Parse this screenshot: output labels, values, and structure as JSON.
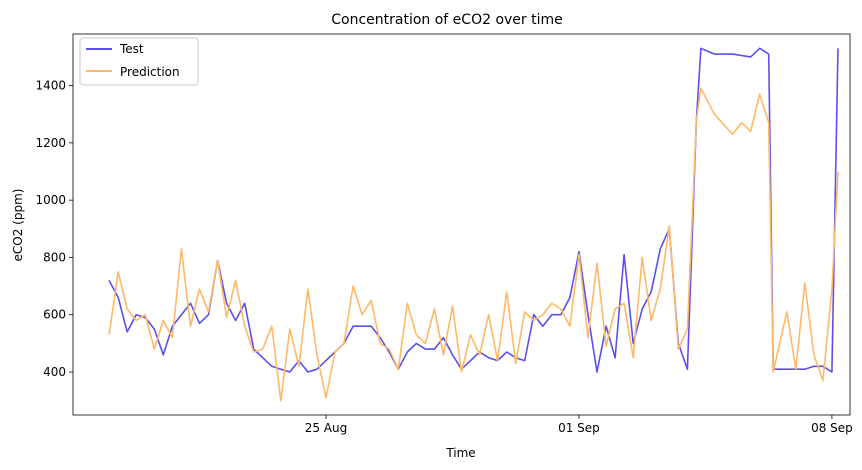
{
  "chart_data": {
    "type": "line",
    "title": "Concentration of eCO2 over time",
    "xlabel": "Time",
    "ylabel": "eCO2 (ppm)",
    "xlim": [
      "2024-08-18T00:00",
      "2024-09-08T12:00"
    ],
    "ylim": [
      250,
      1580
    ],
    "x_ticks": [
      {
        "date": "2024-08-25T00:00",
        "label": "25 Aug"
      },
      {
        "date": "2024-09-01T00:00",
        "label": "01 Sep"
      },
      {
        "date": "2024-09-08T00:00",
        "label": "08 Sep"
      }
    ],
    "y_ticks": [
      400,
      600,
      800,
      1000,
      1200,
      1400
    ],
    "legend": {
      "position": "top-left"
    },
    "series": [
      {
        "name": "Test",
        "color": "#5b4ff0",
        "points": [
          [
            "2024-08-19T00:00",
            720
          ],
          [
            "2024-08-19T06:00",
            660
          ],
          [
            "2024-08-19T12:00",
            540
          ],
          [
            "2024-08-19T18:00",
            600
          ],
          [
            "2024-08-20T00:00",
            590
          ],
          [
            "2024-08-20T06:00",
            550
          ],
          [
            "2024-08-20T12:00",
            460
          ],
          [
            "2024-08-20T18:00",
            560
          ],
          [
            "2024-08-21T00:00",
            600
          ],
          [
            "2024-08-21T06:00",
            640
          ],
          [
            "2024-08-21T12:00",
            570
          ],
          [
            "2024-08-21T18:00",
            600
          ],
          [
            "2024-08-22T00:00",
            790
          ],
          [
            "2024-08-22T06:00",
            640
          ],
          [
            "2024-08-22T12:00",
            580
          ],
          [
            "2024-08-22T18:00",
            640
          ],
          [
            "2024-08-23T00:00",
            480
          ],
          [
            "2024-08-23T06:00",
            450
          ],
          [
            "2024-08-23T12:00",
            420
          ],
          [
            "2024-08-23T18:00",
            410
          ],
          [
            "2024-08-24T00:00",
            400
          ],
          [
            "2024-08-24T06:00",
            440
          ],
          [
            "2024-08-24T12:00",
            400
          ],
          [
            "2024-08-24T18:00",
            410
          ],
          [
            "2024-08-25T00:00",
            440
          ],
          [
            "2024-08-25T06:00",
            470
          ],
          [
            "2024-08-25T12:00",
            500
          ],
          [
            "2024-08-25T18:00",
            560
          ],
          [
            "2024-08-26T00:00",
            560
          ],
          [
            "2024-08-26T06:00",
            560
          ],
          [
            "2024-08-26T12:00",
            520
          ],
          [
            "2024-08-26T18:00",
            470
          ],
          [
            "2024-08-27T00:00",
            410
          ],
          [
            "2024-08-27T06:00",
            470
          ],
          [
            "2024-08-27T12:00",
            500
          ],
          [
            "2024-08-27T18:00",
            480
          ],
          [
            "2024-08-28T00:00",
            480
          ],
          [
            "2024-08-28T06:00",
            520
          ],
          [
            "2024-08-28T12:00",
            460
          ],
          [
            "2024-08-28T18:00",
            410
          ],
          [
            "2024-08-29T00:00",
            440
          ],
          [
            "2024-08-29T06:00",
            470
          ],
          [
            "2024-08-29T12:00",
            450
          ],
          [
            "2024-08-29T18:00",
            440
          ],
          [
            "2024-08-30T00:00",
            470
          ],
          [
            "2024-08-30T06:00",
            450
          ],
          [
            "2024-08-30T12:00",
            440
          ],
          [
            "2024-08-30T18:00",
            600
          ],
          [
            "2024-08-31T00:00",
            560
          ],
          [
            "2024-08-31T06:00",
            600
          ],
          [
            "2024-08-31T12:00",
            600
          ],
          [
            "2024-08-31T18:00",
            660
          ],
          [
            "2024-09-01T00:00",
            820
          ],
          [
            "2024-09-01T06:00",
            600
          ],
          [
            "2024-09-01T12:00",
            400
          ],
          [
            "2024-09-01T18:00",
            560
          ],
          [
            "2024-09-02T00:00",
            450
          ],
          [
            "2024-09-02T06:00",
            810
          ],
          [
            "2024-09-02T12:00",
            500
          ],
          [
            "2024-09-02T18:00",
            620
          ],
          [
            "2024-09-03T00:00",
            680
          ],
          [
            "2024-09-03T06:00",
            830
          ],
          [
            "2024-09-03T12:00",
            900
          ],
          [
            "2024-09-03T18:00",
            500
          ],
          [
            "2024-09-04T00:00",
            410
          ],
          [
            "2024-09-04T06:00",
            1280
          ],
          [
            "2024-09-04T09:00",
            1530
          ],
          [
            "2024-09-04T18:00",
            1510
          ],
          [
            "2024-09-05T06:00",
            1510
          ],
          [
            "2024-09-05T18:00",
            1500
          ],
          [
            "2024-09-06T00:00",
            1530
          ],
          [
            "2024-09-06T06:00",
            1510
          ],
          [
            "2024-09-06T09:00",
            410
          ],
          [
            "2024-09-06T18:00",
            410
          ],
          [
            "2024-09-07T06:00",
            410
          ],
          [
            "2024-09-07T12:00",
            420
          ],
          [
            "2024-09-07T18:00",
            420
          ],
          [
            "2024-09-08T00:00",
            400
          ],
          [
            "2024-09-08T04:00",
            1530
          ]
        ]
      },
      {
        "name": "Prediction",
        "color": "#ffb866",
        "points": [
          [
            "2024-08-19T00:00",
            530
          ],
          [
            "2024-08-19T06:00",
            750
          ],
          [
            "2024-08-19T12:00",
            620
          ],
          [
            "2024-08-19T18:00",
            580
          ],
          [
            "2024-08-20T00:00",
            600
          ],
          [
            "2024-08-20T06:00",
            480
          ],
          [
            "2024-08-20T12:00",
            580
          ],
          [
            "2024-08-20T18:00",
            520
          ],
          [
            "2024-08-21T00:00",
            830
          ],
          [
            "2024-08-21T06:00",
            560
          ],
          [
            "2024-08-21T12:00",
            690
          ],
          [
            "2024-08-21T18:00",
            610
          ],
          [
            "2024-08-22T00:00",
            790
          ],
          [
            "2024-08-22T06:00",
            590
          ],
          [
            "2024-08-22T12:00",
            720
          ],
          [
            "2024-08-22T18:00",
            560
          ],
          [
            "2024-08-23T00:00",
            470
          ],
          [
            "2024-08-23T06:00",
            480
          ],
          [
            "2024-08-23T12:00",
            560
          ],
          [
            "2024-08-23T18:00",
            300
          ],
          [
            "2024-08-24T00:00",
            550
          ],
          [
            "2024-08-24T06:00",
            420
          ],
          [
            "2024-08-24T12:00",
            690
          ],
          [
            "2024-08-24T18:00",
            460
          ],
          [
            "2024-08-25T00:00",
            310
          ],
          [
            "2024-08-25T06:00",
            470
          ],
          [
            "2024-08-25T12:00",
            500
          ],
          [
            "2024-08-25T18:00",
            700
          ],
          [
            "2024-08-26T00:00",
            600
          ],
          [
            "2024-08-26T06:00",
            650
          ],
          [
            "2024-08-26T12:00",
            500
          ],
          [
            "2024-08-26T18:00",
            480
          ],
          [
            "2024-08-27T00:00",
            410
          ],
          [
            "2024-08-27T06:00",
            640
          ],
          [
            "2024-08-27T12:00",
            530
          ],
          [
            "2024-08-27T18:00",
            500
          ],
          [
            "2024-08-28T00:00",
            620
          ],
          [
            "2024-08-28T06:00",
            460
          ],
          [
            "2024-08-28T12:00",
            630
          ],
          [
            "2024-08-28T18:00",
            400
          ],
          [
            "2024-08-29T00:00",
            530
          ],
          [
            "2024-08-29T06:00",
            460
          ],
          [
            "2024-08-29T12:00",
            600
          ],
          [
            "2024-08-29T18:00",
            440
          ],
          [
            "2024-08-30T00:00",
            680
          ],
          [
            "2024-08-30T06:00",
            430
          ],
          [
            "2024-08-30T12:00",
            610
          ],
          [
            "2024-08-30T18:00",
            580
          ],
          [
            "2024-08-31T00:00",
            600
          ],
          [
            "2024-08-31T06:00",
            640
          ],
          [
            "2024-08-31T12:00",
            620
          ],
          [
            "2024-08-31T18:00",
            560
          ],
          [
            "2024-09-01T00:00",
            810
          ],
          [
            "2024-09-01T06:00",
            520
          ],
          [
            "2024-09-01T12:00",
            780
          ],
          [
            "2024-09-01T18:00",
            490
          ],
          [
            "2024-09-02T00:00",
            620
          ],
          [
            "2024-09-02T06:00",
            640
          ],
          [
            "2024-09-02T12:00",
            450
          ],
          [
            "2024-09-02T18:00",
            800
          ],
          [
            "2024-09-03T00:00",
            580
          ],
          [
            "2024-09-03T06:00",
            690
          ],
          [
            "2024-09-03T12:00",
            910
          ],
          [
            "2024-09-03T18:00",
            480
          ],
          [
            "2024-09-04T00:00",
            550
          ],
          [
            "2024-09-04T06:00",
            1280
          ],
          [
            "2024-09-04T09:00",
            1390
          ],
          [
            "2024-09-04T18:00",
            1300
          ],
          [
            "2024-09-05T06:00",
            1230
          ],
          [
            "2024-09-05T12:00",
            1270
          ],
          [
            "2024-09-05T18:00",
            1240
          ],
          [
            "2024-09-06T00:00",
            1370
          ],
          [
            "2024-09-06T06:00",
            1270
          ],
          [
            "2024-09-06T09:00",
            400
          ],
          [
            "2024-09-06T18:00",
            610
          ],
          [
            "2024-09-07T00:00",
            410
          ],
          [
            "2024-09-07T06:00",
            710
          ],
          [
            "2024-09-07T12:00",
            460
          ],
          [
            "2024-09-07T18:00",
            370
          ],
          [
            "2024-09-08T00:00",
            690
          ],
          [
            "2024-09-08T04:00",
            1100
          ]
        ]
      }
    ]
  }
}
